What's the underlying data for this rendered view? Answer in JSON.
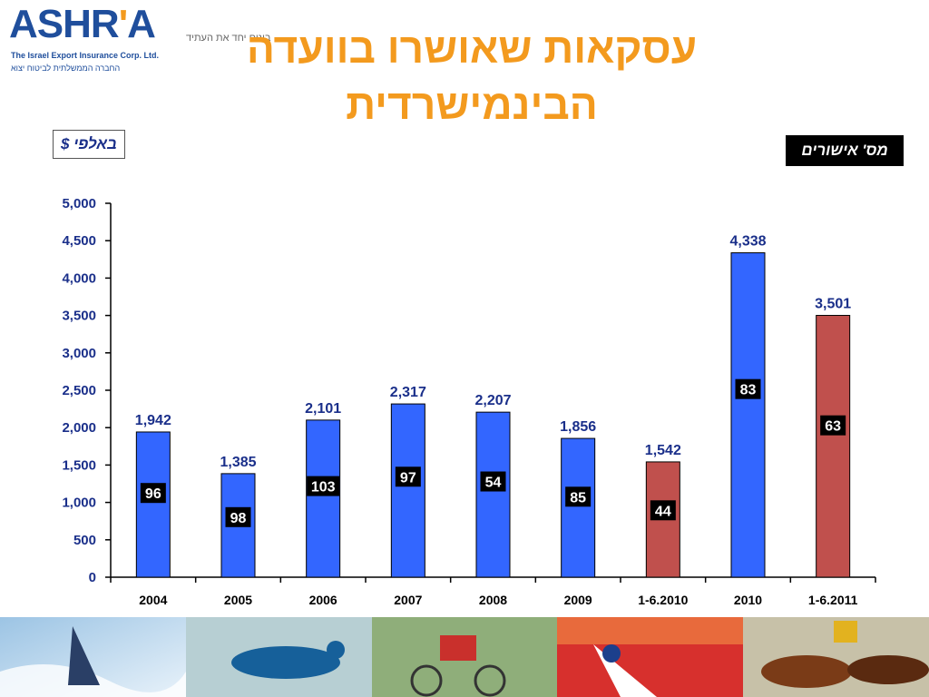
{
  "logo": {
    "word_main": "ASHR",
    "word_apos": "'",
    "word_end": "A",
    "subtitle_en": "The Israel Export Insurance Corp. Ltd.",
    "subtitle_he": "החברה הממשלתית לביטוח יצוא"
  },
  "tagline": "בונים יחד את העתיד",
  "title": "עסקאות שאושרו בוועדה הבינמישרדית",
  "units_label": "באלפי $",
  "approvals_label": "מס' אישורים",
  "colors": {
    "blue_bar": "#3366ff",
    "red_bar": "#c0504d",
    "value_label": "#1a2f8a",
    "title": "#f39a1e",
    "axis": "#000000"
  },
  "photos": [
    "windsurfing",
    "speed-skating",
    "cycling",
    "skiing",
    "horse-racing"
  ],
  "chart_data": {
    "type": "bar",
    "title": "עסקאות שאושרו בוועדה הבינמישרדית",
    "ylabel": "באלפי $",
    "ylim": [
      0,
      5000
    ],
    "yticks": [
      "0",
      "500",
      "1,000",
      "1,500",
      "2,000",
      "2,500",
      "3,000",
      "3,500",
      "4,000",
      "4,500",
      "5,000"
    ],
    "categories": [
      "2004",
      "2005",
      "2006",
      "2007",
      "2008",
      "2009",
      "1-6.2010",
      "2010",
      "1-6.2011"
    ],
    "values": [
      1942,
      1385,
      2101,
      2317,
      2207,
      1856,
      1542,
      4338,
      3501
    ],
    "value_labels": [
      "1,942",
      "1,385",
      "2,101",
      "2,317",
      "2,207",
      "1,856",
      "1,542",
      "4,338",
      "3,501"
    ],
    "approvals_label": "מס' אישורים",
    "approvals": [
      96,
      98,
      103,
      97,
      54,
      85,
      44,
      83,
      63
    ],
    "bar_colors": [
      "#3366ff",
      "#3366ff",
      "#3366ff",
      "#3366ff",
      "#3366ff",
      "#3366ff",
      "#c0504d",
      "#3366ff",
      "#c0504d"
    ],
    "grid": false,
    "legend": "none"
  }
}
